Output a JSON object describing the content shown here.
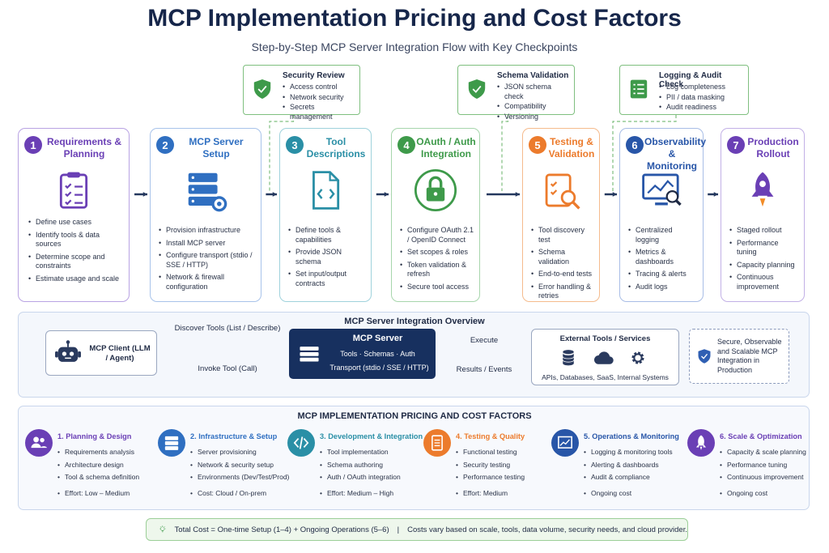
{
  "header": {
    "title": "MCP Implementation Pricing and Cost Factors",
    "subtitle": "Step-by-Step MCP Server Integration Flow with Key Checkpoints"
  },
  "checkpoints": [
    {
      "title": "Security Review",
      "items": [
        "Access control",
        "Network security",
        "Secrets management"
      ]
    },
    {
      "title": "Schema Validation",
      "items": [
        "JSON schema check",
        "Compatibility",
        "Versioning"
      ]
    },
    {
      "title": "Logging & Audit Check",
      "items": [
        "Log completeness",
        "PII / data masking",
        "Audit readiness"
      ]
    }
  ],
  "steps": [
    {
      "number": "1",
      "title": "Requirements & Planning",
      "items": [
        "Define use cases",
        "Identify tools & data sources",
        "Determine scope and constraints",
        "Estimate usage and scale"
      ]
    },
    {
      "number": "2",
      "title": "MCP Server Setup",
      "items": [
        "Provision infrastructure",
        "Install MCP server",
        "Configure transport (stdio / SSE / HTTP)",
        "Network & firewall configuration"
      ]
    },
    {
      "number": "3",
      "title": "Tool Descriptions",
      "items": [
        "Define tools & capabilities",
        "Provide JSON schema",
        "Set input/output contracts"
      ]
    },
    {
      "number": "4",
      "title": "OAuth / Auth Integration",
      "items": [
        "Configure OAuth 2.1 / OpenID Connect",
        "Set scopes & roles",
        "Token validation & refresh",
        "Secure tool access"
      ]
    },
    {
      "number": "5",
      "title": "Testing & Validation",
      "items": [
        "Tool discovery test",
        "Schema validation",
        "End-to-end tests",
        "Error handling & retries"
      ]
    },
    {
      "number": "6",
      "title": "Observability & Monitoring",
      "items": [
        "Centralized logging",
        "Metrics & dashboards",
        "Tracing & alerts",
        "Audit logs"
      ]
    },
    {
      "number": "7",
      "title": "Production Rollout",
      "items": [
        "Staged rollout",
        "Performance tuning",
        "Capacity planning",
        "Continuous improvement"
      ]
    }
  ],
  "overview": {
    "title": "MCP Server Integration Overview",
    "client": "MCP Client (LLM / Agent)",
    "discover": "Discover Tools (List / Describe)",
    "invoke": "Invoke Tool (Call)",
    "server": {
      "title": "MCP Server",
      "line1": "Tools · Schemas · Auth",
      "line2": "Transport (stdio / SSE / HTTP)"
    },
    "execute": "Execute",
    "results": "Results / Events",
    "external": {
      "title": "External Tools / Services",
      "caption": "APIs, Databases, SaaS, Internal Systems"
    },
    "secure": "Secure, Observable and Scalable MCP Integration in Production"
  },
  "costs": {
    "title": "MCP IMPLEMENTATION PRICING AND COST FACTORS",
    "columns": [
      {
        "title": "1. Planning & Design",
        "items": [
          "Requirements analysis",
          "Architecture design",
          "Tool & schema definition"
        ],
        "footnote": "Effort: Low – Medium"
      },
      {
        "title": "2. Infrastructure & Setup",
        "items": [
          "Server provisioning",
          "Network & security setup",
          "Environments (Dev/Test/Prod)"
        ],
        "footnote": "Cost: Cloud / On-prem"
      },
      {
        "title": "3. Development & Integration",
        "items": [
          "Tool implementation",
          "Schema authoring",
          "Auth / OAuth integration"
        ],
        "footnote": "Effort: Medium – High"
      },
      {
        "title": "4. Testing & Quality",
        "items": [
          "Functional testing",
          "Security testing",
          "Performance testing"
        ],
        "footnote": "Effort: Medium"
      },
      {
        "title": "5. Operations & Monitoring",
        "items": [
          "Logging & monitoring tools",
          "Alerting & dashboards",
          "Audit & compliance"
        ],
        "footnote": "Ongoing cost"
      },
      {
        "title": "6. Scale & Optimization",
        "items": [
          "Capacity & scale planning",
          "Performance tuning",
          "Continuous improvement"
        ],
        "footnote": "Ongoing cost"
      }
    ]
  },
  "footer": {
    "total": "Total Cost = One-time Setup (1–4) + Ongoing Operations (5–6)",
    "separator": "|",
    "note": "Costs vary based on scale, tools, data volume, security needs, and cloud provider."
  }
}
